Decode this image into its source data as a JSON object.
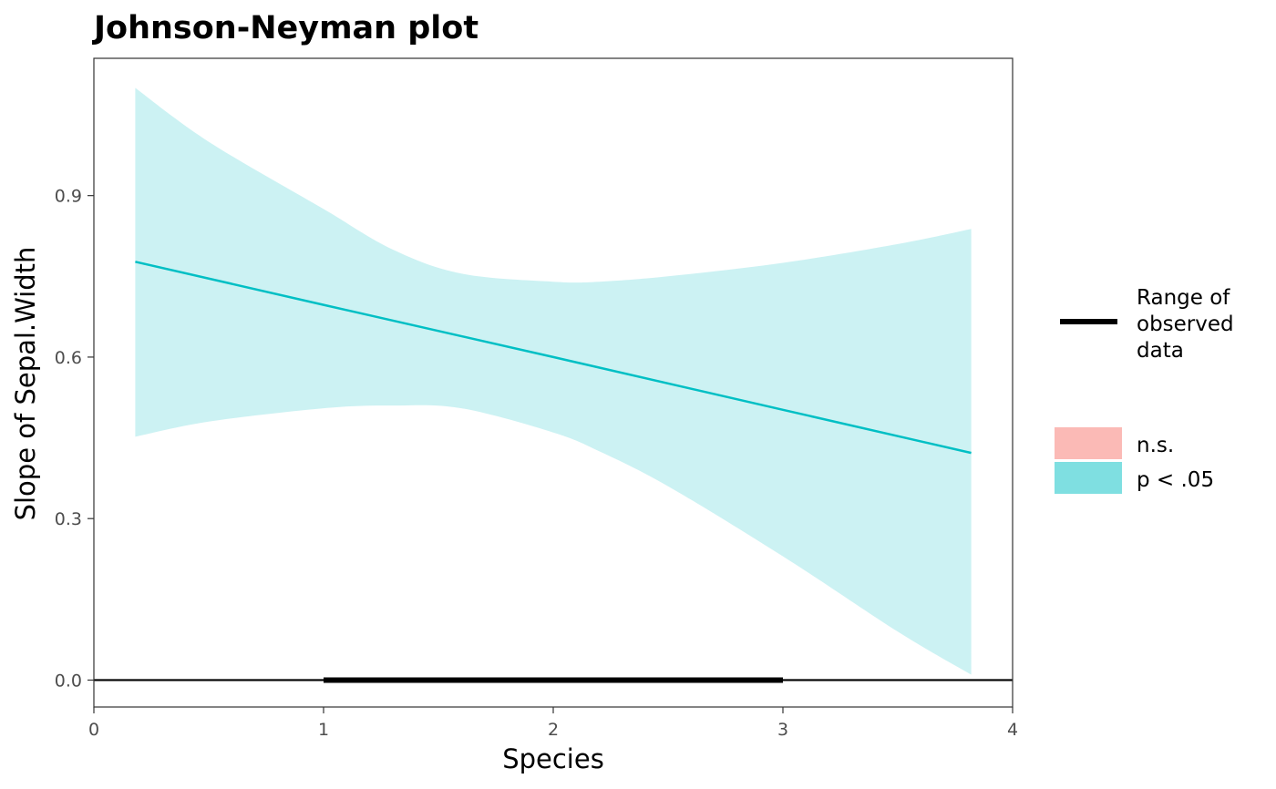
{
  "chart_data": {
    "type": "line",
    "title": "Johnson-Neyman plot",
    "xlabel": "Species",
    "ylabel": "Slope of Sepal.Width",
    "xlim": [
      0,
      4
    ],
    "ylim": [
      -0.05,
      1.155
    ],
    "x_ticks": [
      0,
      1,
      2,
      3,
      4
    ],
    "x_tick_labels": [
      "0",
      "1",
      "2",
      "3",
      "4"
    ],
    "y_ticks": [
      0.0,
      0.3,
      0.6,
      0.9
    ],
    "y_tick_labels": [
      "0.0",
      "0.3",
      "0.6",
      "0.9"
    ],
    "grid": false,
    "legend_position": "right",
    "series": [
      {
        "name": "p < .05",
        "x": [
          0.18,
          1.0,
          2.0,
          3.0,
          3.82
        ],
        "y": [
          0.777,
          0.697,
          0.6,
          0.502,
          0.422
        ]
      }
    ],
    "confidence_band": {
      "x": [
        0.18,
        0.5,
        1.0,
        1.3,
        1.6,
        2.0,
        2.2,
        2.5,
        3.0,
        3.5,
        3.82
      ],
      "lower": [
        0.452,
        0.48,
        0.505,
        0.51,
        0.505,
        0.46,
        0.425,
        0.36,
        0.23,
        0.09,
        0.01
      ],
      "upper": [
        1.1,
        1.0,
        0.875,
        0.8,
        0.755,
        0.74,
        0.74,
        0.75,
        0.775,
        0.81,
        0.838
      ]
    },
    "reference_line_y": 0,
    "observed_range": [
      1,
      3
    ],
    "legend": {
      "range_label": [
        "Range of",
        "observed",
        "data"
      ],
      "significance": [
        {
          "label": "n.s.",
          "color": "#F8766D"
        },
        {
          "label": "p < .05",
          "color": "#00BFC4"
        }
      ]
    },
    "colors": {
      "line": "#00BFC4",
      "band": "#00BFC4",
      "range": "#000000",
      "zero_line": "#000000"
    }
  }
}
